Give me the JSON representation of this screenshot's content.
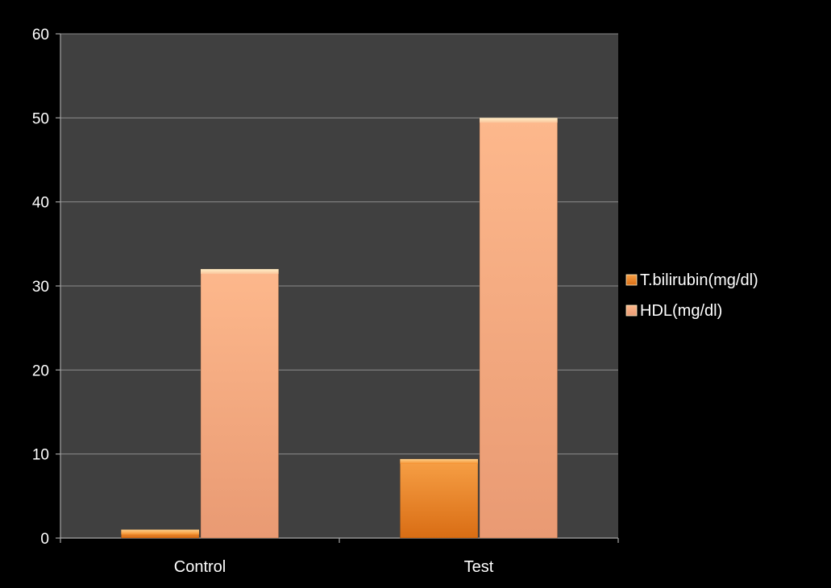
{
  "chart_data": {
    "type": "bar",
    "categories": [
      "Control",
      "Test"
    ],
    "series": [
      {
        "name": "T.bilirubin(mg/dl)",
        "values": [
          1,
          9.4
        ],
        "color": "#f28a2b"
      },
      {
        "name": "HDL(mg/dl)",
        "values": [
          32,
          50
        ],
        "color": "#fab089"
      }
    ],
    "ylim": [
      0,
      60
    ],
    "yticks": [
      0,
      10,
      20,
      30,
      40,
      50,
      60
    ],
    "grid": true,
    "legend_position": "right",
    "colors": {
      "background": "#000000",
      "plot_area": "#404040",
      "gridline": "#8c8c8c",
      "axis": "#a6a6a6",
      "text": "#ffffff"
    }
  }
}
